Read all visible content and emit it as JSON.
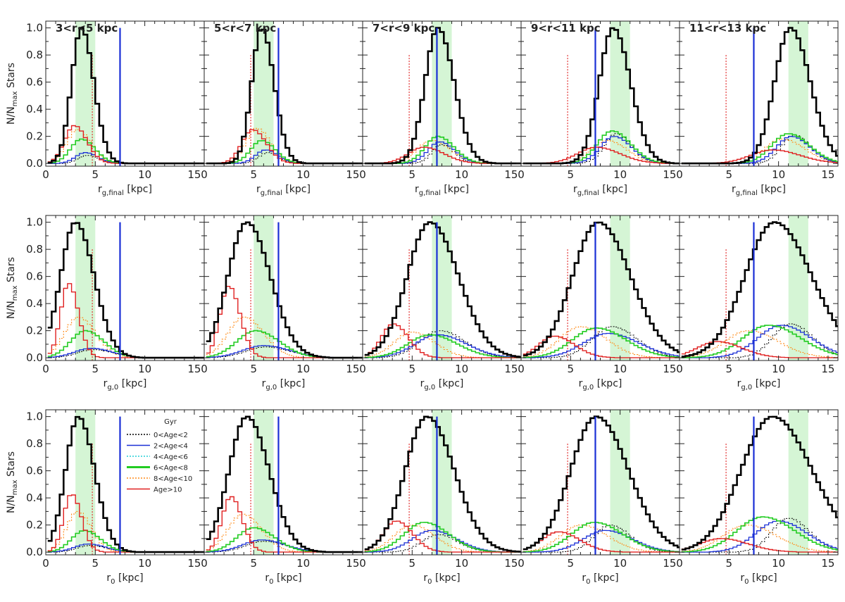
{
  "figure": {
    "ylabel_main": "N/N",
    "ylabel_sub": "max",
    "ylabel_tail": " Stars",
    "panel_titles": [
      "3<r<5 kpc",
      "5<r<7 kpc",
      "7<r<9 kpc",
      "9<r<11 kpc",
      "11<r<13 kpc"
    ],
    "row_xlabels": [
      {
        "sym": "r",
        "sub": "g,final",
        "unit": " [kpc]"
      },
      {
        "sym": "r",
        "sub": "g,0",
        "unit": " [kpc]"
      },
      {
        "sym": "r",
        "sub": "0",
        "unit": " [kpc]"
      }
    ],
    "legend": {
      "title": "Gyr",
      "entries": [
        {
          "label": "0<Age<2",
          "color": "#000000",
          "style": "dotted"
        },
        {
          "label": "2<Age<4",
          "color": "#1a2fd6",
          "style": "solid"
        },
        {
          "label": "4<Age<6",
          "color": "#22cfd6",
          "style": "dotted"
        },
        {
          "label": "6<Age<8",
          "color": "#22cc22",
          "style": "thick"
        },
        {
          "label": "8<Age<10",
          "color": "#ff8c1a",
          "style": "dotted"
        },
        {
          "label": "Age>10",
          "color": "#e02020",
          "style": "solid"
        }
      ]
    }
  },
  "chart_data": {
    "type": "line",
    "layout": "3x5 grid of step histograms",
    "x_range": [
      0,
      16
    ],
    "y_range": [
      -0.02,
      1.05
    ],
    "x_ticks": [
      0,
      5,
      10,
      15
    ],
    "y_ticks": [
      0.0,
      0.2,
      0.4,
      0.6,
      0.8,
      1.0
    ],
    "y_tick_labels": [
      "0.0",
      "0.2",
      "0.4",
      "0.6",
      "0.8",
      "1.0"
    ],
    "vertical_lines": [
      {
        "x": 7.5,
        "color": "#1a2fd6",
        "style": "solid"
      },
      {
        "x": 4.7,
        "color": "#e02020",
        "style": "dotted"
      }
    ],
    "shaded_bands": [
      [
        3,
        5
      ],
      [
        5,
        7
      ],
      [
        7,
        9
      ],
      [
        9,
        11
      ],
      [
        11,
        13
      ]
    ],
    "band_color": "#d5f5d5",
    "series_colors": {
      "all": "#000000",
      "age_2_4": "#1a2fd6",
      "age_6_8": "#22cc22",
      "age_8_10": "#ff8c1a",
      "age_gt_10": "#e02020",
      "age_0_2": "#000000"
    },
    "rows": [
      {
        "name": "r_g,final",
        "columns": [
          {
            "all": {
              "c": 3.6,
              "w": 1.0,
              "h": 1.0
            },
            "age_gt_10": {
              "c": 2.9,
              "w": 1.0,
              "h": 0.28
            },
            "age_8_10": {
              "c": 3.2,
              "w": 1.1,
              "h": 0.25
            },
            "age_6_8": {
              "c": 3.6,
              "w": 1.1,
              "h": 0.18
            },
            "age_2_4": {
              "c": 4.0,
              "w": 1.0,
              "h": 0.08
            },
            "age_0_2": {
              "c": 4.2,
              "w": 0.9,
              "h": 0.06
            }
          },
          {
            "all": {
              "c": 5.8,
              "w": 1.0,
              "h": 1.0
            },
            "age_gt_10": {
              "c": 4.9,
              "w": 1.1,
              "h": 0.25
            },
            "age_8_10": {
              "c": 5.3,
              "w": 1.1,
              "h": 0.26
            },
            "age_6_8": {
              "c": 5.8,
              "w": 1.1,
              "h": 0.17
            },
            "age_2_4": {
              "c": 6.2,
              "w": 1.0,
              "h": 0.1
            },
            "age_0_2": {
              "c": 6.4,
              "w": 0.9,
              "h": 0.08
            }
          },
          {
            "all": {
              "c": 7.6,
              "w": 1.3,
              "h": 1.0
            },
            "age_gt_10": {
              "c": 6.2,
              "w": 1.6,
              "h": 0.12
            },
            "age_8_10": {
              "c": 7.0,
              "w": 1.5,
              "h": 0.17
            },
            "age_6_8": {
              "c": 7.6,
              "w": 1.3,
              "h": 0.2
            },
            "age_2_4": {
              "c": 7.8,
              "w": 1.2,
              "h": 0.16
            },
            "age_0_2": {
              "c": 8.0,
              "w": 1.0,
              "h": 0.14
            }
          },
          {
            "all": {
              "c": 9.3,
              "w": 1.4,
              "h": 1.0
            },
            "age_gt_10": {
              "c": 7.6,
              "w": 1.9,
              "h": 0.12
            },
            "age_8_10": {
              "c": 8.7,
              "w": 1.6,
              "h": 0.17
            },
            "age_6_8": {
              "c": 9.2,
              "w": 1.5,
              "h": 0.24
            },
            "age_2_4": {
              "c": 9.4,
              "w": 1.4,
              "h": 0.2
            },
            "age_0_2": {
              "c": 9.6,
              "w": 1.2,
              "h": 0.22
            }
          },
          {
            "all": {
              "c": 11.2,
              "w": 1.6,
              "h": 1.0
            },
            "age_gt_10": {
              "c": 9.4,
              "w": 2.2,
              "h": 0.1
            },
            "age_8_10": {
              "c": 10.4,
              "w": 1.8,
              "h": 0.18
            },
            "age_6_8": {
              "c": 11.0,
              "w": 1.7,
              "h": 0.22
            },
            "age_2_4": {
              "c": 11.3,
              "w": 1.5,
              "h": 0.2
            },
            "age_0_2": {
              "c": 11.6,
              "w": 1.3,
              "h": 0.21
            }
          }
        ]
      },
      {
        "name": "r_g,0",
        "columns": [
          {
            "all": {
              "c": 3.0,
              "w": 1.5,
              "h": 1.0
            },
            "age_gt_10": {
              "c": 2.3,
              "w": 0.8,
              "h": 0.55
            },
            "age_8_10": {
              "c": 3.3,
              "w": 1.4,
              "h": 0.3
            },
            "age_6_8": {
              "c": 4.0,
              "w": 1.5,
              "h": 0.2
            },
            "age_2_4": {
              "c": 4.6,
              "w": 1.7,
              "h": 0.07
            },
            "age_0_2": {
              "c": 4.8,
              "w": 1.6,
              "h": 0.06
            }
          },
          {
            "all": {
              "c": 4.3,
              "w": 1.9,
              "h": 1.0
            },
            "age_gt_10": {
              "c": 2.5,
              "w": 0.9,
              "h": 0.53
            },
            "age_8_10": {
              "c": 4.0,
              "w": 1.6,
              "h": 0.3
            },
            "age_6_8": {
              "c": 5.2,
              "w": 1.9,
              "h": 0.2
            },
            "age_2_4": {
              "c": 6.0,
              "w": 2.1,
              "h": 0.09
            },
            "age_0_2": {
              "c": 6.2,
              "w": 2.0,
              "h": 0.08
            }
          },
          {
            "all": {
              "c": 6.8,
              "w": 2.3,
              "h": 1.0
            },
            "age_gt_10": {
              "c": 3.1,
              "w": 1.2,
              "h": 0.25
            },
            "age_8_10": {
              "c": 5.0,
              "w": 1.8,
              "h": 0.19
            },
            "age_6_8": {
              "c": 6.8,
              "w": 2.2,
              "h": 0.17
            },
            "age_2_4": {
              "c": 7.6,
              "w": 2.3,
              "h": 0.17
            },
            "age_0_2": {
              "c": 7.8,
              "w": 2.0,
              "h": 0.2
            }
          },
          {
            "all": {
              "c": 7.8,
              "w": 2.6,
              "h": 1.0
            },
            "age_gt_10": {
              "c": 3.4,
              "w": 1.6,
              "h": 0.16
            },
            "age_8_10": {
              "c": 6.0,
              "w": 2.1,
              "h": 0.23
            },
            "age_6_8": {
              "c": 7.6,
              "w": 2.4,
              "h": 0.22
            },
            "age_2_4": {
              "c": 8.8,
              "w": 2.5,
              "h": 0.18
            },
            "age_0_2": {
              "c": 9.2,
              "w": 2.0,
              "h": 0.23
            }
          },
          {
            "all": {
              "c": 9.6,
              "w": 3.0,
              "h": 1.0
            },
            "age_gt_10": {
              "c": 3.8,
              "w": 2.0,
              "h": 0.12
            },
            "age_8_10": {
              "c": 7.0,
              "w": 2.4,
              "h": 0.2
            },
            "age_6_8": {
              "c": 9.0,
              "w": 2.6,
              "h": 0.24
            },
            "age_2_4": {
              "c": 10.3,
              "w": 2.4,
              "h": 0.24
            },
            "age_0_2": {
              "c": 11.2,
              "w": 1.8,
              "h": 0.25
            }
          }
        ]
      },
      {
        "name": "r_0",
        "columns": [
          {
            "all": {
              "c": 3.3,
              "w": 1.3,
              "h": 1.0
            },
            "age_gt_10": {
              "c": 2.6,
              "w": 0.8,
              "h": 0.43
            },
            "age_8_10": {
              "c": 3.2,
              "w": 1.1,
              "h": 0.3
            },
            "age_6_8": {
              "c": 3.9,
              "w": 1.3,
              "h": 0.16
            },
            "age_2_4": {
              "c": 4.3,
              "w": 1.4,
              "h": 0.06
            },
            "age_0_2": {
              "c": 4.5,
              "w": 1.3,
              "h": 0.05
            }
          },
          {
            "all": {
              "c": 4.3,
              "w": 1.8,
              "h": 1.0
            },
            "age_gt_10": {
              "c": 2.7,
              "w": 0.9,
              "h": 0.41
            },
            "age_8_10": {
              "c": 3.9,
              "w": 1.5,
              "h": 0.28
            },
            "age_6_8": {
              "c": 5.0,
              "w": 1.7,
              "h": 0.18
            },
            "age_2_4": {
              "c": 5.8,
              "w": 1.9,
              "h": 0.09
            },
            "age_0_2": {
              "c": 6.0,
              "w": 1.8,
              "h": 0.08
            }
          },
          {
            "all": {
              "c": 6.5,
              "w": 2.2,
              "h": 1.0
            },
            "age_gt_10": {
              "c": 3.4,
              "w": 1.3,
              "h": 0.23
            },
            "age_8_10": {
              "c": 5.0,
              "w": 1.8,
              "h": 0.2
            },
            "age_6_8": {
              "c": 6.2,
              "w": 2.0,
              "h": 0.22
            },
            "age_2_4": {
              "c": 7.0,
              "w": 2.0,
              "h": 0.16
            },
            "age_0_2": {
              "c": 7.6,
              "w": 1.6,
              "h": 0.13
            }
          },
          {
            "all": {
              "c": 7.6,
              "w": 2.6,
              "h": 1.0
            },
            "age_gt_10": {
              "c": 3.8,
              "w": 1.7,
              "h": 0.15
            },
            "age_8_10": {
              "c": 6.1,
              "w": 2.1,
              "h": 0.2
            },
            "age_6_8": {
              "c": 7.4,
              "w": 2.3,
              "h": 0.22
            },
            "age_2_4": {
              "c": 8.5,
              "w": 2.2,
              "h": 0.16
            },
            "age_0_2": {
              "c": 9.0,
              "w": 1.6,
              "h": 0.2
            }
          },
          {
            "all": {
              "c": 9.4,
              "w": 3.2,
              "h": 1.0
            },
            "age_gt_10": {
              "c": 4.2,
              "w": 2.2,
              "h": 0.1
            },
            "age_8_10": {
              "c": 6.8,
              "w": 2.4,
              "h": 0.2
            },
            "age_6_8": {
              "c": 8.4,
              "w": 2.6,
              "h": 0.26
            },
            "age_2_4": {
              "c": 10.0,
              "w": 2.3,
              "h": 0.23
            },
            "age_0_2": {
              "c": 11.0,
              "w": 1.7,
              "h": 0.25
            }
          }
        ]
      }
    ]
  }
}
